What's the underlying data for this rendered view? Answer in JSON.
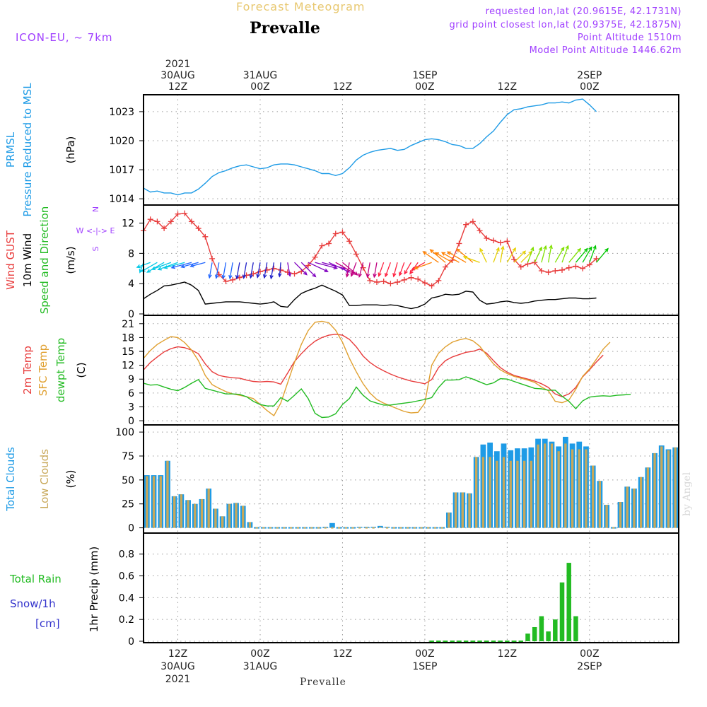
{
  "header": {
    "top_label": "Forecast Meteogram",
    "station": "Prevalle",
    "model": "ICON-EU, ~ 7km",
    "requested": "requested lon,lat (20.9615E, 42.1731N)",
    "gridpoint": "grid point closest lon,lat (20.9375E, 42.1875N)",
    "altitude": "Point Altitude 1510m",
    "model_altitude": "Model Point Altitude 1446.62m",
    "footer_station": "Prevalle",
    "watermark": "by Angel"
  },
  "colors": {
    "pressure": "#1e9be6",
    "gust": "#e83c3c",
    "wind": "#000000",
    "t2m": "#e83c3c",
    "tsfc": "#e0a030",
    "dewpt": "#22bb22",
    "total_clouds": "#1e9be6",
    "low_clouds": "#c8a85a",
    "rain": "#22bb22",
    "snow": "#3333cc",
    "compass": "#a040ff",
    "header_violet": "#a040ff",
    "header_gold": "#e8c870"
  },
  "chart_data": {
    "time_axis": {
      "start": "2021-08-30T07:00Z",
      "end": "2021-09-02T13:00Z",
      "step_hours": 1,
      "top_labels": [
        {
          "time": "2021-08-30T12:00Z",
          "lines": [
            "2021",
            "30AUG",
            "12Z"
          ]
        },
        {
          "time": "2021-08-31T00:00Z",
          "lines": [
            "31AUG",
            "00Z"
          ]
        },
        {
          "time": "2021-08-31T12:00Z",
          "lines": [
            "12Z"
          ]
        },
        {
          "time": "2021-09-01T00:00Z",
          "lines": [
            "1SEP",
            "00Z"
          ]
        },
        {
          "time": "2021-09-01T12:00Z",
          "lines": [
            "12Z"
          ]
        },
        {
          "time": "2021-09-02T00:00Z",
          "lines": [
            "2SEP",
            "00Z"
          ]
        }
      ],
      "bottom_labels": [
        {
          "time": "2021-08-30T12:00Z",
          "lines": [
            "12Z",
            "30AUG",
            "2021"
          ]
        },
        {
          "time": "2021-08-31T00:00Z",
          "lines": [
            "00Z",
            "31AUG"
          ]
        },
        {
          "time": "2021-08-31T12:00Z",
          "lines": [
            "12Z"
          ]
        },
        {
          "time": "2021-09-01T00:00Z",
          "lines": [
            "00Z",
            "1SEP"
          ]
        },
        {
          "time": "2021-09-01T12:00Z",
          "lines": [
            "12Z"
          ]
        },
        {
          "time": "2021-09-02T00:00Z",
          "lines": [
            "00Z",
            "2SEP"
          ]
        }
      ]
    },
    "panels": [
      {
        "id": "pressure",
        "type": "line",
        "labels": [
          "PRMSL",
          "Pressure Reduced to MSL"
        ],
        "unit": "(hPa)",
        "ylim": [
          1013.5,
          1024.6
        ],
        "yticks": [
          1014,
          1017,
          1020,
          1023
        ],
        "grid": true,
        "series": [
          {
            "key": "prmsl",
            "color": "pressure",
            "values": [
              1015.1,
              1014.7,
              1014.8,
              1014.6,
              1014.6,
              1014.4,
              1014.6,
              1014.6,
              1015.0,
              1015.6,
              1016.3,
              1016.7,
              1016.9,
              1017.2,
              1017.4,
              1017.5,
              1017.3,
              1017.1,
              1017.2,
              1017.5,
              1017.6,
              1017.6,
              1017.5,
              1017.3,
              1017.1,
              1016.9,
              1016.6,
              1016.6,
              1016.4,
              1016.6,
              1017.2,
              1018.0,
              1018.5,
              1018.8,
              1019.0,
              1019.1,
              1019.2,
              1019.0,
              1019.1,
              1019.5,
              1019.8,
              1020.1,
              1020.2,
              1020.1,
              1019.9,
              1019.6,
              1019.5,
              1019.2,
              1019.2,
              1019.7,
              1020.4,
              1021.0,
              1021.9,
              1022.7,
              1023.2,
              1023.3,
              1023.5,
              1023.6,
              1023.7,
              1023.9,
              1023.9,
              1024.0,
              1023.9,
              1024.2,
              1024.3,
              1023.7,
              1023.0
            ]
          }
        ]
      },
      {
        "id": "wind",
        "type": "line",
        "labels": [
          "Wind GUST",
          "10m Wind",
          "Speed and Direction"
        ],
        "unit": "(m/s)",
        "compass": [
          "N",
          "W <-|-> E",
          "S"
        ],
        "ylim": [
          0,
          14.2
        ],
        "yticks": [
          0,
          4,
          8,
          12
        ],
        "grid": true,
        "series": [
          {
            "key": "gust",
            "color": "gust",
            "marker": "+",
            "values": [
              11.0,
              12.5,
              12.2,
              11.3,
              12.2,
              13.2,
              13.3,
              12.2,
              11.3,
              10.2,
              7.3,
              5.2,
              4.3,
              4.5,
              4.8,
              5.1,
              5.3,
              5.6,
              5.8,
              6.0,
              5.8,
              5.5,
              5.3,
              5.6,
              6.4,
              7.5,
              9.0,
              9.3,
              10.6,
              10.8,
              9.6,
              7.9,
              6.1,
              4.4,
              4.2,
              4.3,
              4.0,
              4.2,
              4.5,
              4.8,
              4.6,
              4.1,
              3.7,
              4.4,
              6.2,
              7.1,
              9.3,
              11.8,
              12.2,
              11.0,
              10.0,
              9.7,
              9.4,
              9.6,
              7.2,
              6.2,
              6.6,
              6.8,
              5.7,
              5.5,
              5.7,
              5.8,
              6.1,
              6.3,
              6.0,
              6.5,
              7.3
            ]
          },
          {
            "key": "wind10m",
            "color": "wind",
            "values": [
              2.0,
              2.6,
              3.1,
              3.7,
              3.8,
              4.0,
              4.2,
              3.8,
              3.1,
              1.3,
              1.4,
              1.5,
              1.6,
              1.6,
              1.6,
              1.5,
              1.4,
              1.3,
              1.4,
              1.6,
              1.0,
              0.9,
              1.9,
              2.7,
              3.1,
              3.4,
              3.8,
              3.4,
              3.0,
              2.5,
              1.1,
              1.1,
              1.2,
              1.2,
              1.2,
              1.1,
              1.2,
              1.1,
              0.9,
              0.7,
              0.9,
              1.3,
              2.1,
              2.3,
              2.6,
              2.5,
              2.6,
              3.0,
              2.9,
              1.8,
              1.3,
              1.4,
              1.6,
              1.7,
              1.5,
              1.4,
              1.5,
              1.7,
              1.8,
              1.9,
              1.9,
              2.0,
              2.1,
              2.1,
              2.0,
              2.0,
              2.1
            ]
          }
        ],
        "arrows": {
          "direction_deg": [
            200,
            250,
            240,
            240,
            250,
            250,
            255,
            255,
            255,
            255,
            190,
            190,
            190,
            190,
            190,
            190,
            190,
            190,
            190,
            190,
            185,
            170,
            135,
            135,
            115,
            105,
            105,
            115,
            120,
            130,
            190,
            200,
            195,
            190,
            190,
            200,
            200,
            195,
            200,
            210,
            215,
            240,
            250,
            305,
            310,
            300,
            300,
            300,
            310,
            290,
            335,
            20,
            10,
            30,
            45,
            45,
            20,
            25,
            15,
            10,
            30,
            20,
            40,
            40,
            30,
            20,
            40
          ],
          "speed_ms": [
            1.0,
            2.0,
            3.0,
            3.5,
            3.7,
            3.9,
            4.0,
            3.8,
            3.0,
            2.3,
            2.4,
            2.5,
            2.6,
            2.6,
            2.6,
            2.5,
            2.4,
            2.3,
            2.4,
            2.6,
            2.0,
            1.9,
            2.9,
            3.7,
            4.1,
            4.4,
            4.8,
            4.4,
            4.0,
            3.5,
            2.1,
            2.1,
            2.2,
            2.2,
            2.2,
            2.1,
            2.2,
            2.1,
            1.9,
            1.7,
            1.9,
            2.3,
            3.1,
            3.3,
            3.6,
            3.5,
            3.6,
            4.0,
            3.9,
            2.8,
            2.3,
            2.4,
            2.6,
            2.7,
            2.5,
            2.4,
            2.5,
            2.7,
            2.8,
            2.9,
            2.9,
            3.0,
            3.1,
            3.1,
            3.0,
            3.0,
            3.1
          ],
          "palette": [
            "#00c8e6",
            "#1e64ff",
            "#2020c8",
            "#8000c0",
            "#c00080",
            "#ff2040",
            "#ff8000",
            "#e6d000",
            "#80e000",
            "#00c800"
          ]
        }
      },
      {
        "id": "temperature",
        "type": "line",
        "labels": [
          "2m Temp",
          "SFC Temp",
          "dewpt Temp"
        ],
        "unit": "(C)",
        "ylim": [
          -0.6,
          22.5
        ],
        "yticks": [
          0,
          3,
          6,
          9,
          12,
          15,
          18,
          21
        ],
        "grid": true,
        "series": [
          {
            "key": "t2m",
            "color": "t2m",
            "values": [
              11.0,
              12.6,
              13.8,
              14.9,
              15.6,
              16.0,
              15.8,
              15.3,
              14.5,
              12.3,
              10.6,
              9.8,
              9.5,
              9.3,
              9.2,
              8.8,
              8.5,
              8.4,
              8.5,
              8.4,
              7.9,
              10.3,
              12.8,
              14.5,
              16.0,
              17.2,
              18.0,
              18.5,
              18.7,
              18.5,
              17.6,
              16.0,
              14.0,
              12.6,
              11.6,
              10.8,
              10.1,
              9.5,
              9.0,
              8.6,
              8.3,
              8.0,
              8.9,
              11.5,
              13.0,
              13.8,
              14.3,
              14.8,
              15.0,
              15.5,
              14.6,
              13.0,
              11.5,
              10.5,
              9.8,
              9.4,
              9.0,
              8.6,
              8.0,
              7.2,
              5.8,
              5.2,
              5.8,
              7.2,
              9.5,
              11.0,
              12.7,
              14.2
            ]
          },
          {
            "key": "tsfc",
            "color": "tsfc",
            "values": [
              13.5,
              15.2,
              16.5,
              17.4,
              18.2,
              18.0,
              16.9,
              15.3,
              13.0,
              9.8,
              7.8,
              7.0,
              6.3,
              5.8,
              5.5,
              5.2,
              4.8,
              3.5,
              2.2,
              1.1,
              3.8,
              8.2,
              12.6,
              16.5,
              19.5,
              21.3,
              21.5,
              21.2,
              19.6,
              17.0,
              13.5,
              10.6,
              8.0,
              6.0,
              4.6,
              3.8,
              3.2,
              2.6,
              2.0,
              1.7,
              1.8,
              3.8,
              12.0,
              14.6,
              16.0,
              17.0,
              17.5,
              17.8,
              17.3,
              16.1,
              14.2,
              12.3,
              11.0,
              10.2,
              9.6,
              9.2,
              8.8,
              8.3,
              7.3,
              6.5,
              4.2,
              3.9,
              4.5,
              6.8,
              9.6,
              11.2,
              13.3,
              15.5,
              17.0
            ]
          },
          {
            "key": "dewpt",
            "color": "dewpt",
            "values": [
              8.1,
              7.7,
              7.8,
              7.3,
              6.8,
              6.5,
              7.2,
              8.1,
              8.9,
              7.0,
              6.6,
              6.2,
              5.8,
              5.8,
              5.7,
              5.2,
              4.2,
              3.5,
              3.2,
              3.2,
              5.0,
              4.2,
              5.5,
              6.9,
              4.8,
              1.6,
              0.7,
              0.8,
              1.5,
              3.5,
              4.8,
              7.3,
              5.5,
              4.3,
              3.8,
              3.4,
              3.4,
              3.6,
              3.8,
              4.0,
              4.3,
              4.6,
              5.0,
              7.2,
              8.8,
              8.8,
              8.9,
              9.5,
              9.0,
              8.4,
              7.8,
              8.2,
              9.1,
              9.0,
              8.5,
              8.0,
              7.5,
              7.0,
              6.9,
              6.6,
              6.6,
              5.3,
              4.2,
              2.6,
              4.3,
              5.1,
              5.3,
              5.4,
              5.3,
              5.5,
              5.6,
              5.7
            ]
          }
        ]
      },
      {
        "id": "clouds",
        "type": "bar",
        "labels": [
          "Total Clouds",
          "Low Clouds"
        ],
        "unit": "(%)",
        "ylim": [
          -4,
          106
        ],
        "yticks": [
          0,
          25,
          50,
          75,
          100
        ],
        "grid": true,
        "series": [
          {
            "key": "total",
            "color": "total_clouds",
            "values": [
              55,
              55,
              55,
              70,
              33,
              35,
              29,
              25,
              30,
              41,
              20,
              12,
              25,
              26,
              23,
              6,
              0,
              0,
              0,
              0,
              0,
              0,
              0,
              0,
              0,
              0,
              1,
              5,
              0,
              0,
              0,
              1,
              1,
              1,
              2,
              1,
              0,
              0,
              0,
              0,
              0,
              0,
              0,
              0,
              16,
              37,
              37,
              36,
              74,
              87,
              89,
              80,
              88,
              81,
              83,
              83,
              84,
              93,
              93,
              90,
              85,
              95,
              88,
              90,
              85,
              65,
              49,
              24,
              0,
              27,
              43,
              41,
              53,
              63,
              78,
              86,
              82,
              84
            ]
          },
          {
            "key": "low",
            "color": "low_clouds",
            "values": [
              54,
              54,
              54,
              70,
              33,
              35,
              29,
              25,
              30,
              41,
              20,
              12,
              25,
              26,
              23,
              6,
              0,
              0,
              0,
              0,
              0,
              0,
              0,
              0,
              0,
              0,
              0,
              0,
              0,
              0,
              0,
              0,
              0,
              0,
              1,
              0,
              0,
              0,
              0,
              0,
              0,
              0,
              0,
              0,
              16,
              37,
              37,
              36,
              74,
              74,
              74,
              70,
              74,
              70,
              70,
              70,
              70,
              87,
              88,
              88,
              80,
              88,
              82,
              82,
              82,
              65,
              49,
              24,
              0,
              27,
              43,
              41,
              53,
              63,
              78,
              85,
              81,
              84
            ]
          }
        ]
      },
      {
        "id": "precip",
        "type": "bar",
        "labels": [
          "Total  Rain",
          "Snow/1h",
          "[cm]"
        ],
        "axis_label": "1hr Precip (mm)",
        "ylim": [
          0,
          0.98
        ],
        "yticks": [
          0,
          0.2,
          0.4,
          0.6,
          0.8
        ],
        "ytick_labels": [
          "0",
          "0.2",
          "0.4",
          "0.6",
          "0.8"
        ],
        "grid": true,
        "series": [
          {
            "key": "rain",
            "color": "rain",
            "start_index": 42,
            "values": [
              0,
              0,
              0,
              0,
              0,
              0,
              0,
              0,
              0,
              0,
              0,
              0,
              0,
              0,
              0.07,
              0.13,
              0.23,
              0.09,
              0.2,
              0.54,
              0.72,
              0.23
            ]
          }
        ]
      }
    ]
  }
}
